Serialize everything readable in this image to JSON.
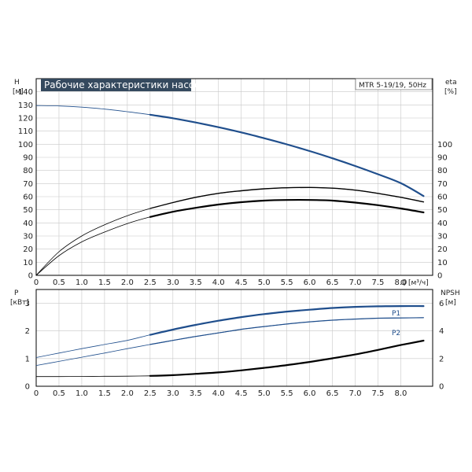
{
  "colors": {
    "blue": "#1f4e8c",
    "black": "#000000",
    "grid": "#c8c8c8",
    "title_bg": "#34495e"
  },
  "chart_data": [
    {
      "type": "line",
      "title": "Рабочие характеристики насоса",
      "model": "MTR 5-19/19, 50Hz",
      "y_label": "H",
      "y_unit": "[м]",
      "y_right_label": "eta",
      "y_right_unit": "[%]",
      "x_label": "Q [м³/ч]",
      "x_ticks": [
        "0",
        "0.5",
        "1.0",
        "1.5",
        "2.0",
        "2.5",
        "3.0",
        "3.5",
        "4.0",
        "4.5",
        "5.0",
        "5.5",
        "6.0",
        "6.5",
        "7.0",
        "7.5",
        "8.0"
      ],
      "xlim": [
        0,
        8.7
      ],
      "y_ticks": [
        "0",
        "10",
        "20",
        "30",
        "40",
        "50",
        "60",
        "70",
        "80",
        "90",
        "100",
        "110",
        "120",
        "130",
        "140"
      ],
      "ylim": [
        0,
        150
      ],
      "y_right_ticks": [
        "0",
        "10",
        "20",
        "30",
        "40",
        "50",
        "60",
        "70",
        "80",
        "90",
        "100"
      ],
      "grid": true,
      "series": [
        {
          "role": "head",
          "color": "#1f4e8c",
          "x": [
            0,
            0.5,
            1.0,
            1.5,
            2.0,
            2.5,
            3.0,
            3.5,
            4.0,
            4.5,
            5.0,
            5.5,
            6.0,
            6.5,
            7.0,
            7.5,
            8.0,
            8.5
          ],
          "y": [
            129.5,
            129.2,
            128.3,
            126.8,
            124.8,
            122.5,
            119.8,
            116.6,
            113.0,
            109.0,
            104.6,
            99.9,
            94.8,
            89.3,
            83.4,
            77.1,
            70.3,
            60.5
          ]
        },
        {
          "role": "efficiency",
          "color": "#000000",
          "x": [
            0,
            0.5,
            1.0,
            1.5,
            2.0,
            2.5,
            3.0,
            3.5,
            4.0,
            4.5,
            5.0,
            5.5,
            6.0,
            6.5,
            7.0,
            7.5,
            8.0,
            8.5
          ],
          "y": [
            0,
            18,
            30,
            38.5,
            45.5,
            51,
            55.5,
            59.5,
            62.5,
            64.5,
            66,
            66.8,
            67,
            66.5,
            65,
            62.5,
            59.5,
            56
          ]
        },
        {
          "role": "efficiency-2",
          "color": "#000000",
          "x": [
            0,
            0.5,
            1.0,
            1.5,
            2.0,
            2.5,
            3.0,
            3.5,
            4.0,
            4.5,
            5.0,
            5.5,
            6.0,
            6.5,
            7.0,
            7.5,
            8.0,
            8.5
          ],
          "y": [
            0,
            15,
            25.5,
            33,
            39.5,
            44.5,
            48.5,
            51.5,
            54,
            55.8,
            57,
            57.5,
            57.5,
            57,
            55.5,
            53.5,
            51,
            48
          ]
        }
      ]
    },
    {
      "type": "line",
      "y_label": "P",
      "y_unit": "[кВт]",
      "y_right_label": "NPSH",
      "y_right_unit": "[м]",
      "x_ticks": [
        "0",
        "0.5",
        "1.0",
        "1.5",
        "2.0",
        "2.5",
        "3.0",
        "3.5",
        "4.0",
        "4.5",
        "5.0",
        "5.5",
        "6.0",
        "6.5",
        "7.0",
        "7.5",
        "8.0"
      ],
      "xlim": [
        0,
        8.7
      ],
      "y_ticks": [
        "0",
        "1",
        "2",
        "3"
      ],
      "ylim": [
        0,
        3.5
      ],
      "y_right_ticks": [
        "0",
        "2",
        "4",
        "6"
      ],
      "y_right_lim": [
        0,
        7
      ],
      "grid": true,
      "series": [
        {
          "name": "P1",
          "color": "#1f4e8c",
          "x": [
            0,
            0.5,
            1.0,
            1.5,
            2.0,
            2.5,
            3.0,
            3.5,
            4.0,
            4.5,
            5.0,
            5.5,
            6.0,
            6.5,
            7.0,
            7.5,
            8.0,
            8.5
          ],
          "y": [
            1.04,
            1.2,
            1.36,
            1.51,
            1.66,
            1.86,
            2.05,
            2.22,
            2.37,
            2.5,
            2.61,
            2.7,
            2.77,
            2.83,
            2.87,
            2.89,
            2.9,
            2.9
          ]
        },
        {
          "name": "P2",
          "color": "#1f4e8c",
          "x": [
            0,
            0.5,
            1.0,
            1.5,
            2.0,
            2.5,
            3.0,
            3.5,
            4.0,
            4.5,
            5.0,
            5.5,
            6.0,
            6.5,
            7.0,
            7.5,
            8.0,
            8.5
          ],
          "y": [
            0.75,
            0.9,
            1.05,
            1.2,
            1.36,
            1.51,
            1.66,
            1.8,
            1.93,
            2.06,
            2.16,
            2.25,
            2.33,
            2.39,
            2.43,
            2.46,
            2.47,
            2.48
          ]
        },
        {
          "role": "npsh",
          "axis": "right",
          "color": "#000000",
          "x": [
            0,
            0.5,
            1.0,
            1.5,
            2.0,
            2.5,
            3.0,
            3.5,
            4.0,
            4.5,
            5.0,
            5.5,
            6.0,
            6.5,
            7.0,
            7.5,
            8.0,
            8.5
          ],
          "y": [
            0.7,
            0.7,
            0.71,
            0.72,
            0.73,
            0.75,
            0.8,
            0.9,
            1.0,
            1.15,
            1.33,
            1.53,
            1.76,
            2.02,
            2.3,
            2.63,
            2.98,
            3.3
          ]
        }
      ]
    }
  ]
}
